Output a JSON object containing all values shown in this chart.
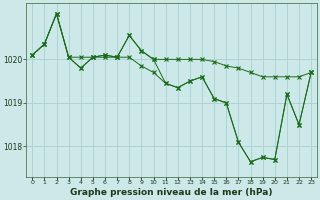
{
  "title": "Graphe pression niveau de la mer (hPa)",
  "background_color": "#cce8e8",
  "grid_color": "#aad0d0",
  "line_color": "#1a6b1a",
  "x_labels": [
    "0",
    "1",
    "2",
    "3",
    "4",
    "5",
    "6",
    "7",
    "8",
    "9",
    "10",
    "11",
    "12",
    "13",
    "14",
    "15",
    "16",
    "17",
    "18",
    "19",
    "20",
    "21",
    "22",
    "23"
  ],
  "ylim": [
    1017.3,
    1021.3
  ],
  "yticks": [
    1018,
    1019,
    1020
  ],
  "series": {
    "line1": [
      1020.1,
      1020.35,
      1021.05,
      1020.05,
      1020.05,
      1020.05,
      1020.1,
      1020.05,
      1020.55,
      1020.2,
      1020.0,
      1020.0,
      1020.0,
      1020.0,
      1020.0,
      1019.95,
      1019.85,
      1019.8,
      1019.7,
      1019.6,
      1019.6,
      1019.6,
      1019.6,
      1019.7
    ],
    "line2": [
      1020.1,
      1020.35,
      1021.05,
      1020.05,
      1019.8,
      1020.05,
      1020.1,
      1020.05,
      1020.55,
      1020.2,
      1020.0,
      1019.45,
      1019.35,
      1019.5,
      1019.6,
      1019.1,
      1019.0,
      1018.1,
      1017.65,
      1017.75,
      1017.7,
      1019.2,
      1018.5,
      1019.7
    ],
    "line3": [
      1020.1,
      1020.35,
      1021.05,
      1020.05,
      1019.8,
      1020.05,
      1020.05,
      1020.05,
      1020.05,
      1019.85,
      1019.7,
      1019.45,
      1019.35,
      1019.5,
      1019.6,
      1019.1,
      1019.0,
      1018.1,
      1017.65,
      1017.75,
      1017.7,
      1019.2,
      1018.5,
      1019.7
    ]
  }
}
